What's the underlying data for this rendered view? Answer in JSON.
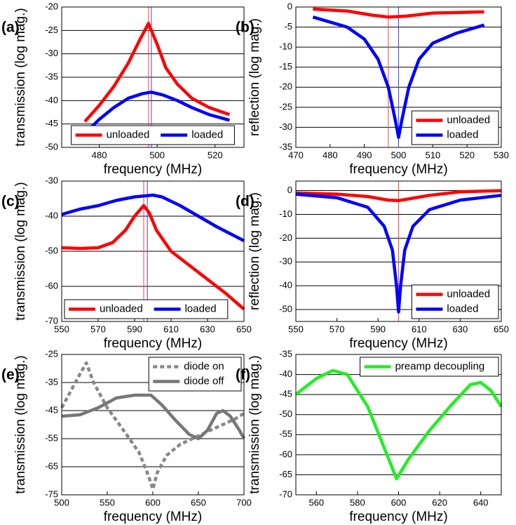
{
  "chart_data": [
    {
      "type": "line",
      "label": "(a)",
      "xlabel": "frequency (MHz)",
      "ylabel": "transmission (log mag.)",
      "xlim": [
        467,
        530
      ],
      "xticks": [
        480,
        500,
        520
      ],
      "ylim": [
        -50,
        -20
      ],
      "yticks": [
        -50,
        -45,
        -40,
        -35,
        -30,
        -25,
        -20
      ],
      "grid": true,
      "legend": "lower center",
      "legend_layout": "horizontal",
      "markers": [
        {
          "x": 497,
          "color": "#ff4040"
        },
        {
          "x": 498,
          "color": "#4040ff"
        }
      ],
      "series": [
        {
          "name": "unloaded",
          "color": "#ff0000",
          "x": [
            475,
            480,
            485,
            490,
            494,
            497,
            500,
            503,
            507,
            512,
            518,
            525
          ],
          "values": [
            -44.5,
            -41,
            -37,
            -32,
            -27,
            -23.5,
            -28,
            -33,
            -36.5,
            -39.5,
            -41.5,
            -43
          ]
        },
        {
          "name": "loaded",
          "color": "#0000ff",
          "x": [
            475,
            480,
            485,
            490,
            495,
            498,
            502,
            507,
            512,
            518,
            525
          ],
          "values": [
            -47,
            -44,
            -41.5,
            -39.5,
            -38.5,
            -38.2,
            -38.8,
            -40,
            -41.5,
            -43,
            -44.2
          ]
        }
      ]
    },
    {
      "type": "line",
      "label": "(b)",
      "xlabel": "frequency (MHz)",
      "ylabel": "reflection (log mag.)",
      "xlim": [
        470,
        530
      ],
      "xticks": [
        470,
        480,
        490,
        500,
        510,
        520,
        530
      ],
      "ylim": [
        -35,
        0
      ],
      "yticks": [
        -35,
        -30,
        -25,
        -20,
        -15,
        -10,
        -5,
        0
      ],
      "grid": true,
      "legend": "lower right",
      "legend_layout": "vertical",
      "markers": [
        {
          "x": 497,
          "color": "#ff4040"
        },
        {
          "x": 500,
          "color": "#4040ff"
        }
      ],
      "series": [
        {
          "name": "unloaded",
          "color": "#ff0000",
          "x": [
            475,
            485,
            492,
            497,
            502,
            510,
            525
          ],
          "values": [
            -0.5,
            -1,
            -2,
            -2.5,
            -2.3,
            -1.5,
            -1.2
          ]
        },
        {
          "name": "loaded",
          "color": "#0000ff",
          "x": [
            475,
            485,
            490,
            494,
            497,
            499,
            500,
            501,
            503,
            506,
            510,
            517,
            525
          ],
          "values": [
            -2.5,
            -5,
            -8,
            -13,
            -20,
            -28,
            -32.5,
            -28,
            -20,
            -13,
            -9,
            -6.5,
            -4.5
          ]
        }
      ]
    },
    {
      "type": "line",
      "label": "(c)",
      "xlabel": "frequency (MHz)",
      "ylabel": "transmission (log mag.)",
      "xlim": [
        550,
        650
      ],
      "xticks": [
        550,
        570,
        590,
        610,
        630,
        650
      ],
      "ylim": [
        -70,
        -30
      ],
      "yticks": [
        -70,
        -60,
        -50,
        -40,
        -30
      ],
      "grid": true,
      "legend": "lower left",
      "legend_layout": "horizontal",
      "markers": [
        {
          "x": 595,
          "color": "#ff4040"
        },
        {
          "x": 597,
          "color": "#4040ff"
        }
      ],
      "series": [
        {
          "name": "unloaded",
          "color": "#ff0000",
          "x": [
            550,
            560,
            570,
            578,
            585,
            590,
            595,
            598,
            602,
            610,
            620,
            630,
            640,
            650
          ],
          "values": [
            -49,
            -49.2,
            -49,
            -47.5,
            -44,
            -40,
            -37,
            -39,
            -44,
            -50,
            -54,
            -58,
            -62,
            -66.5
          ]
        },
        {
          "name": "loaded",
          "color": "#0000ff",
          "x": [
            550,
            560,
            570,
            580,
            590,
            600,
            605,
            615,
            625,
            635,
            650
          ],
          "values": [
            -39.5,
            -38,
            -37,
            -35.5,
            -34.5,
            -34,
            -34.5,
            -37,
            -40,
            -43,
            -47
          ]
        }
      ]
    },
    {
      "type": "line",
      "label": "(d)",
      "xlabel": "frequency (MHz)",
      "ylabel": "reflection (log mag.)",
      "xlim": [
        550,
        650
      ],
      "xticks": [
        550,
        570,
        590,
        610,
        630,
        650
      ],
      "ylim": [
        -55,
        4
      ],
      "yticks": [
        -50,
        -40,
        -30,
        -20,
        -10,
        0
      ],
      "grid": true,
      "legend": "lower right",
      "legend_layout": "vertical",
      "markers": [
        {
          "x": 600,
          "color": "#ff4040"
        }
      ],
      "series": [
        {
          "name": "unloaded",
          "color": "#ff0000",
          "x": [
            550,
            570,
            585,
            595,
            600,
            605,
            615,
            630,
            650
          ],
          "values": [
            -1,
            -1.5,
            -2.5,
            -4,
            -4.2,
            -3.5,
            -2,
            -0.5,
            0
          ]
        },
        {
          "name": "loaded",
          "color": "#0000ff",
          "x": [
            550,
            570,
            585,
            593,
            597,
            599,
            600,
            601,
            603,
            607,
            615,
            630,
            650
          ],
          "values": [
            -1.5,
            -3,
            -7,
            -15,
            -25,
            -40,
            -51,
            -40,
            -25,
            -15,
            -8,
            -4,
            -2
          ]
        }
      ]
    },
    {
      "type": "line",
      "label": "(e)",
      "xlabel": "frequency (MHz)",
      "ylabel": "transmission (log mag.)",
      "xlim": [
        500,
        700
      ],
      "xticks": [
        500,
        550,
        600,
        650,
        700
      ],
      "ylim": [
        -75,
        -25
      ],
      "yticks": [
        -75,
        -65,
        -55,
        -45,
        -35,
        -25
      ],
      "grid": true,
      "legend": "upper right",
      "legend_layout": "vertical",
      "markers": [],
      "series": [
        {
          "name": "diode on",
          "color": "#888888",
          "dash": true,
          "x": [
            500,
            510,
            520,
            527,
            535,
            550,
            570,
            585,
            595,
            600,
            605,
            615,
            630,
            650,
            670,
            690,
            700
          ],
          "values": [
            -44,
            -38,
            -32,
            -28,
            -35,
            -44,
            -53,
            -60,
            -68,
            -73,
            -67,
            -61,
            -57,
            -54,
            -51,
            -48,
            -46
          ]
        },
        {
          "name": "diode off",
          "color": "#777777",
          "x": [
            500,
            520,
            540,
            560,
            580,
            598,
            610,
            625,
            640,
            650,
            660,
            670,
            677,
            685,
            695,
            700
          ],
          "values": [
            -47,
            -46.5,
            -44,
            -40.5,
            -39.5,
            -39.5,
            -43,
            -48.5,
            -53.5,
            -55,
            -52,
            -46,
            -45,
            -47,
            -52,
            -55
          ]
        }
      ]
    },
    {
      "type": "line",
      "label": "(f)",
      "xlabel": "frequency (MHz)",
      "ylabel": "transmission (log mag.)",
      "xlim": [
        550,
        650
      ],
      "xticks": [
        560,
        580,
        600,
        620,
        640
      ],
      "ylim": [
        -70,
        -35
      ],
      "yticks": [
        -70,
        -65,
        -60,
        -55,
        -50,
        -45,
        -40,
        -35
      ],
      "grid": true,
      "legend": "upper right",
      "legend_layout": "vertical",
      "markers": [],
      "series": [
        {
          "name": "preamp decoupling",
          "color": "#22ee22",
          "x": [
            550,
            555,
            560,
            568,
            575,
            585,
            592,
            599,
            605,
            615,
            625,
            635,
            640,
            645,
            650
          ],
          "values": [
            -45,
            -43,
            -41,
            -39,
            -40,
            -48,
            -57,
            -66,
            -61,
            -54,
            -48,
            -42.5,
            -42,
            -44,
            -48
          ]
        }
      ]
    }
  ]
}
